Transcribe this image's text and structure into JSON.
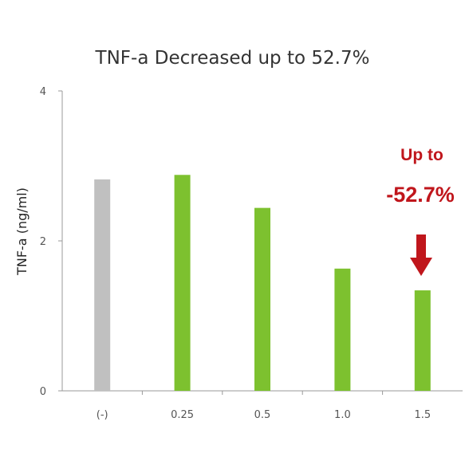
{
  "chart_data": {
    "type": "bar",
    "title": "TNF-a Decreased up to 52.7%",
    "ylabel": "TNF-a (ng/ml)",
    "xlabel": "",
    "categories": [
      "(-)",
      "0.25",
      "0.5",
      "1.0",
      "1.5"
    ],
    "values": [
      2.82,
      2.88,
      2.44,
      1.63,
      1.34
    ],
    "ylim": [
      0,
      4
    ],
    "yticks": [
      0,
      2,
      4
    ],
    "grid": false,
    "legend": "none",
    "colors": {
      "control": "#c0c0c0",
      "treatment": "#7dc12f",
      "annotation": "#c0161c"
    },
    "annotation": {
      "line1": "Up to",
      "line2": "-52.7%",
      "target_category": "1.5"
    }
  }
}
